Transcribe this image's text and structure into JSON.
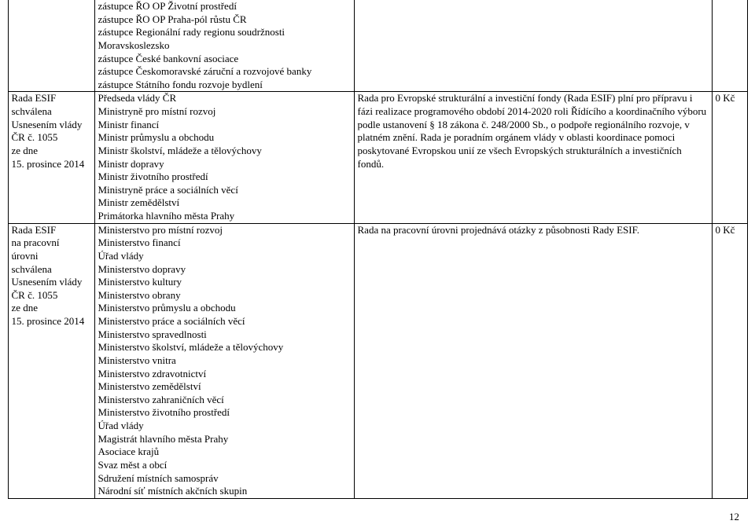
{
  "page_number": "12",
  "table": {
    "columns": [
      "col1",
      "col2",
      "col3",
      "col4"
    ],
    "rows": [
      {
        "col1_lines": [],
        "col2_lines": [
          "zástupce ŘO OP Životní prostředí",
          "zástupce ŘO OP Praha-pól růstu ČR",
          "zástupce Regionální rady regionu soudržnosti Moravskoslezsko",
          "zástupce České bankovní asociace",
          "zástupce Českomoravské záruční a rozvojové banky",
          "zástupce Státního fondu rozvoje bydlení"
        ],
        "col3_lines": [],
        "col4": ""
      },
      {
        "col1_lines": [
          "Rada ESIF",
          "schválena",
          "Usnesením vlády",
          "ČR č. 1055",
          "ze dne",
          "15. prosince 2014"
        ],
        "col2_lines": [
          "Předseda vlády ČR",
          "Ministryně pro místní rozvoj",
          "Ministr financí",
          "Ministr průmyslu a obchodu",
          "Ministr školství, mládeže a tělovýchovy",
          "Ministr dopravy",
          "Ministr životního prostředí",
          "Ministryně práce a sociálních věcí",
          "Ministr zemědělství",
          "Primátorka hlavního města Prahy"
        ],
        "col3_lines": [
          "Rada pro Evropské strukturální a investiční fondy (Rada ESIF) plní pro přípravu i fázi realizace programového období 2014-2020 roli Řídícího a koordinačního výboru podle ustanovení § 18 zákona č. 248/2000 Sb., o podpoře regionálního rozvoje, v platném znění. Rada je poradním orgánem vlády v oblasti koordinace pomoci poskytované Evropskou unií ze všech Evropských strukturálních a investičních fondů."
        ],
        "col4": "0 Kč"
      },
      {
        "col1_lines": [
          "Rada ESIF",
          "na pracovní",
          "úrovni",
          "schválena",
          "Usnesením vlády",
          "ČR č. 1055",
          "ze dne",
          "15. prosince 2014"
        ],
        "col2_lines": [
          "Ministerstvo pro místní rozvoj",
          "Ministerstvo financí",
          "Úřad vlády",
          "Ministerstvo dopravy",
          "Ministerstvo kultury",
          "Ministerstvo obrany",
          "Ministerstvo průmyslu a obchodu",
          "Ministerstvo práce a sociálních věcí",
          "Ministerstvo spravedlnosti",
          "Ministerstvo školství, mládeže a tělovýchovy",
          "Ministerstvo vnitra",
          "Ministerstvo zdravotnictví",
          "Ministerstvo zemědělství",
          "Ministerstvo zahraničních věcí",
          "Ministerstvo životního prostředí",
          "Úřad vlády",
          "Magistrát hlavního města Prahy",
          "Asociace krajů",
          "Svaz měst a obcí",
          "Sdružení místních samospráv",
          "Národní síť místních akčních skupin"
        ],
        "col3_lines": [
          "Rada na pracovní úrovni projednává otázky z působnosti Rady ESIF."
        ],
        "col4": "0 Kč"
      }
    ]
  }
}
